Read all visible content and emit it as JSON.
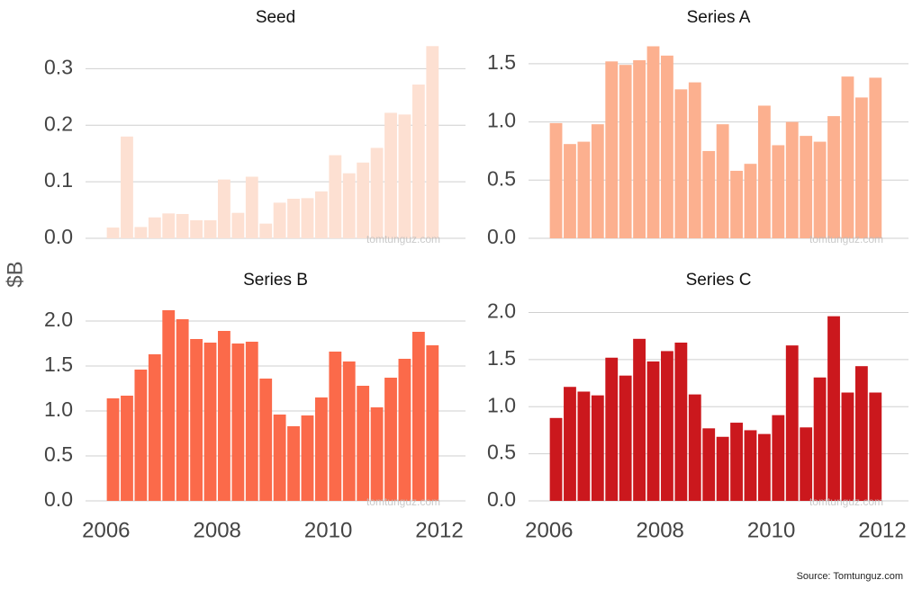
{
  "ylabel": "$B",
  "source": "Source: Tomtunguz.com",
  "chart_data": [
    {
      "type": "bar",
      "title": "Seed",
      "color": "#fde0d2",
      "grid": true,
      "watermark": "tomtunguz.com",
      "x": [
        2006.125,
        2006.375,
        2006.625,
        2006.875,
        2007.125,
        2007.375,
        2007.625,
        2007.875,
        2008.125,
        2008.375,
        2008.625,
        2008.875,
        2009.125,
        2009.375,
        2009.625,
        2009.875,
        2010.125,
        2010.375,
        2010.625,
        2010.875,
        2011.125,
        2011.375,
        2011.625,
        2011.875
      ],
      "values": [
        0.019,
        0.18,
        0.02,
        0.037,
        0.044,
        0.043,
        0.032,
        0.032,
        0.104,
        0.045,
        0.109,
        0.026,
        0.063,
        0.07,
        0.071,
        0.083,
        0.147,
        0.115,
        0.134,
        0.16,
        0.222,
        0.219,
        0.272,
        0.34
      ],
      "xlim": [
        2005.63,
        2012.47
      ],
      "ylim": [
        0,
        0.35
      ],
      "yticks": [
        {
          "value": 0,
          "label": "0.0"
        },
        0.1,
        0.2,
        0.3
      ]
    },
    {
      "type": "bar",
      "title": "Series A",
      "color": "#fcb08f",
      "grid": true,
      "watermark": "tomtunguz.com",
      "x": [
        2006.125,
        2006.375,
        2006.625,
        2006.875,
        2007.125,
        2007.375,
        2007.625,
        2007.875,
        2008.125,
        2008.375,
        2008.625,
        2008.875,
        2009.125,
        2009.375,
        2009.625,
        2009.875,
        2010.125,
        2010.375,
        2010.625,
        2010.875,
        2011.125,
        2011.375,
        2011.625,
        2011.875
      ],
      "values": [
        0.99,
        0.81,
        0.83,
        0.98,
        1.52,
        1.49,
        1.53,
        1.65,
        1.57,
        1.28,
        1.34,
        0.75,
        0.98,
        0.58,
        0.64,
        1.14,
        0.8,
        1.0,
        0.88,
        0.83,
        1.05,
        1.39,
        1.21,
        1.38
      ],
      "xlim": [
        2005.63,
        2012.47
      ],
      "ylim": [
        0,
        1.7
      ],
      "yticks": [
        {
          "value": 0,
          "label": "0.0"
        },
        0.5,
        {
          "value": 1,
          "label": "1.0"
        },
        1.5
      ]
    },
    {
      "type": "bar",
      "title": "Series B",
      "color": "#fb6a4a",
      "grid": true,
      "watermark": "tomtunguz.com",
      "x": [
        2006.125,
        2006.375,
        2006.625,
        2006.875,
        2007.125,
        2007.375,
        2007.625,
        2007.875,
        2008.125,
        2008.375,
        2008.625,
        2008.875,
        2009.125,
        2009.375,
        2009.625,
        2009.875,
        2010.125,
        2010.375,
        2010.625,
        2010.875,
        2011.125,
        2011.375,
        2011.625,
        2011.875
      ],
      "values": [
        1.14,
        1.17,
        1.46,
        1.63,
        2.12,
        2.02,
        1.8,
        1.76,
        1.89,
        1.75,
        1.77,
        1.36,
        0.96,
        0.83,
        0.95,
        1.15,
        1.66,
        1.55,
        1.28,
        1.04,
        1.37,
        1.58,
        1.88,
        1.73
      ],
      "xlim": [
        2005.63,
        2012.47
      ],
      "ylim": [
        0,
        2.2
      ],
      "yticks": [
        {
          "value": 0,
          "label": "0.0"
        },
        0.5,
        {
          "value": 1,
          "label": "1.0"
        },
        1.5,
        {
          "value": 2,
          "label": "2.0"
        }
      ],
      "xticks": [
        2006,
        2008,
        2010,
        2012
      ]
    },
    {
      "type": "bar",
      "title": "Series C",
      "color": "#cb181d",
      "grid": true,
      "watermark": "tomtunguz.com",
      "x": [
        2006.125,
        2006.375,
        2006.625,
        2006.875,
        2007.125,
        2007.375,
        2007.625,
        2007.875,
        2008.125,
        2008.375,
        2008.625,
        2008.875,
        2009.125,
        2009.375,
        2009.625,
        2009.875,
        2010.125,
        2010.375,
        2010.625,
        2010.875,
        2011.125,
        2011.375,
        2011.625,
        2011.875
      ],
      "values": [
        0.88,
        1.21,
        1.16,
        1.12,
        1.52,
        1.33,
        1.72,
        1.48,
        1.59,
        1.68,
        1.13,
        0.77,
        0.68,
        0.83,
        0.75,
        0.71,
        0.91,
        1.65,
        0.78,
        1.31,
        1.96,
        1.15,
        1.43,
        1.15
      ],
      "xlim": [
        2005.63,
        2012.47
      ],
      "ylim": [
        0,
        2.1
      ],
      "yticks": [
        {
          "value": 0,
          "label": "0.0"
        },
        0.5,
        {
          "value": 1,
          "label": "1.0"
        },
        1.5,
        {
          "value": 2,
          "label": "2.0"
        }
      ],
      "xticks": [
        2006,
        2008,
        2010,
        2012
      ]
    }
  ]
}
